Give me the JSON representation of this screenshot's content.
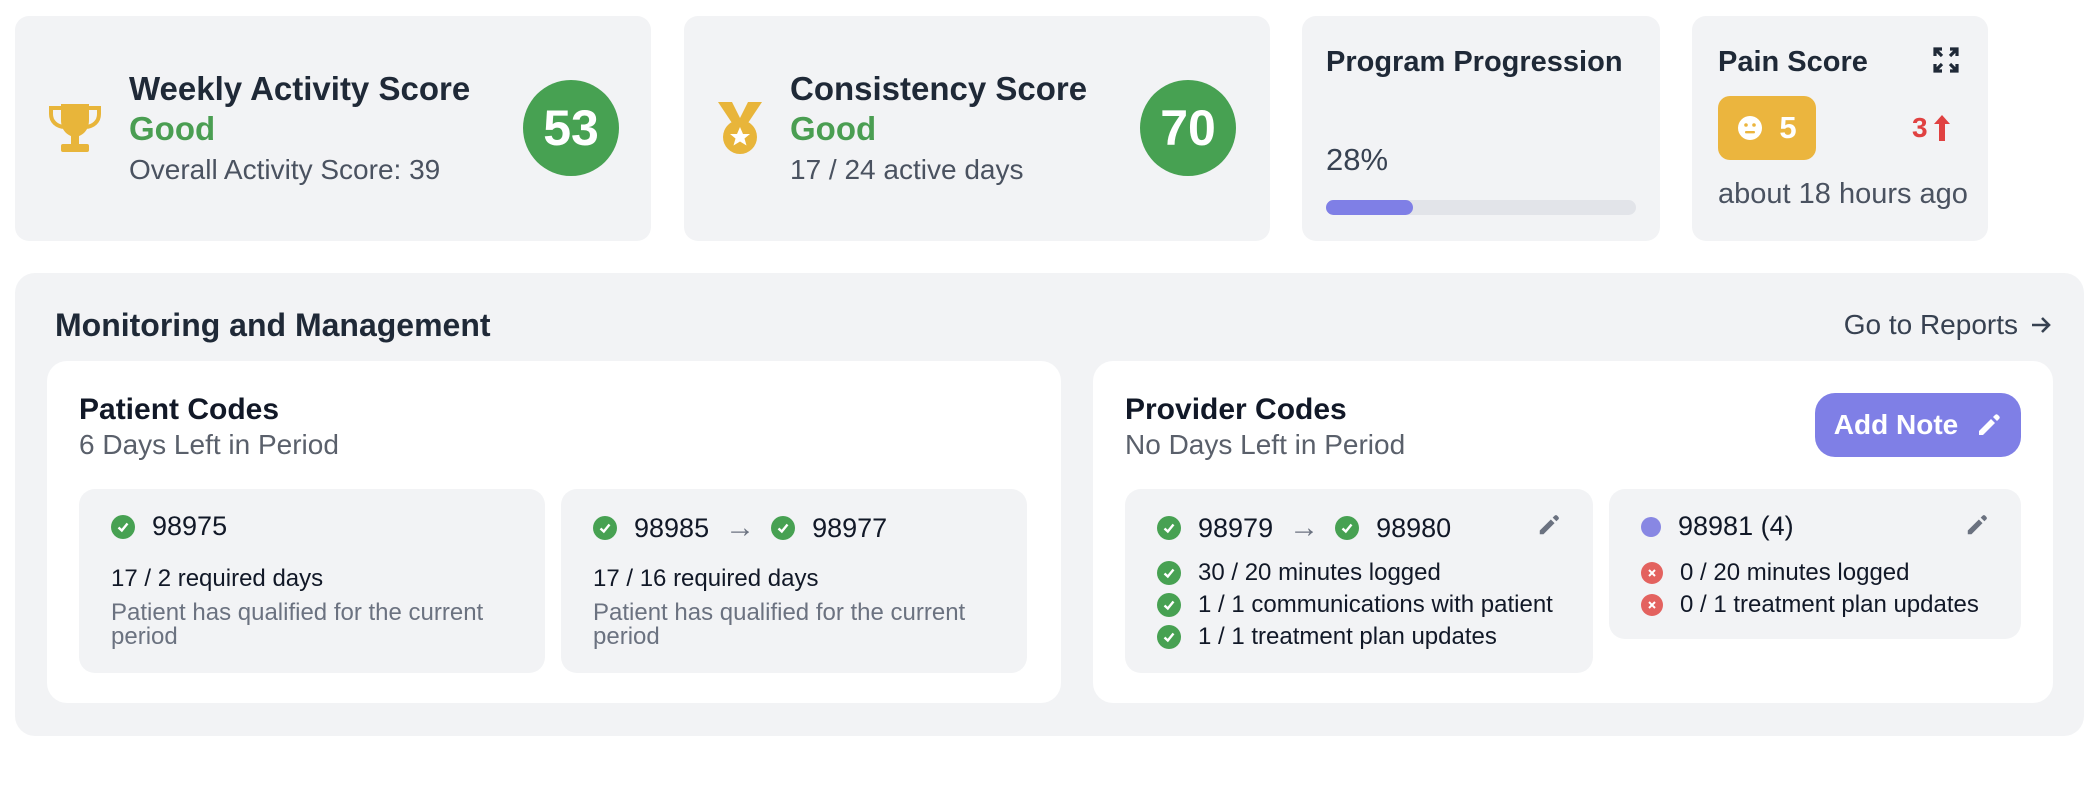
{
  "weekly_activity": {
    "title": "Weekly Activity Score",
    "status": "Good",
    "subtitle": "Overall Activity Score: 39",
    "score": "53",
    "icon": "trophy-icon"
  },
  "consistency": {
    "title": "Consistency Score",
    "status": "Good",
    "subtitle": "17 / 24 active days",
    "score": "70",
    "icon": "medal-icon"
  },
  "program_progression": {
    "title": "Program Progression",
    "percent_label": "28%",
    "progress": 0.28
  },
  "pain_score": {
    "title": "Pain Score",
    "value": "5",
    "change": "3",
    "time": "about 18 hours ago",
    "icons": [
      "expand-icon",
      "neutral-face-icon",
      "arrow-up-icon"
    ]
  },
  "monitoring": {
    "title": "Monitoring and Management",
    "reports_link": "Go to Reports",
    "patient_codes": {
      "title": "Patient Codes",
      "subtitle": "6 Days Left in Period",
      "boxes": [
        {
          "code": "98975",
          "required": "17 / 2 required days",
          "note": "Patient has qualified for the current period"
        },
        {
          "code": "98985",
          "code_next": "98977",
          "required": "17 / 16 required days",
          "note": "Patient has qualified for the current period"
        }
      ]
    },
    "provider_codes": {
      "title": "Provider Codes",
      "subtitle": "No Days Left in Period",
      "add_note": "Add Note",
      "boxes": [
        {
          "code": "98979",
          "code_next": "98980",
          "items": [
            "30 / 20 minutes logged",
            "1 / 1 communications with patient",
            "1 / 1 treatment plan updates"
          ]
        },
        {
          "code": "98981 (4)",
          "items": [
            "0 / 20 minutes logged",
            "0 / 1 treatment plan updates"
          ]
        }
      ]
    }
  },
  "colors": {
    "good": "#4a9e52",
    "score_circle": "#47a152",
    "accent": "#7f7fe6",
    "pain_badge": "#ebb53e",
    "alert": "#e04141",
    "trophy": "#e8b53a",
    "card_bg": "#f2f3f5"
  }
}
